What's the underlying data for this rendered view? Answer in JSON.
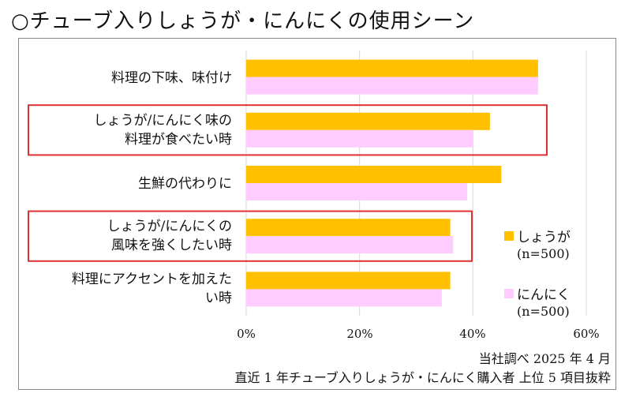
{
  "title": "○チューブ入りしょうが・にんにくの使用シーン",
  "chart_data": {
    "type": "bar",
    "orientation": "horizontal",
    "categories": [
      [
        "料理の下味、味付け"
      ],
      [
        "しょうが/にんにく味の",
        "料理が食べたい時"
      ],
      [
        "生鮮の代わりに"
      ],
      [
        "しょうが/にんにくの",
        "風味を強くしたい時"
      ],
      [
        "料理にアクセントを加えた",
        "い時"
      ]
    ],
    "series": [
      {
        "name": "しょうが",
        "sample": "(n=500)",
        "color": "#FFC000",
        "values": [
          51.5,
          43,
          45,
          36,
          36
        ]
      },
      {
        "name": "にんにく",
        "sample": "(n=500)",
        "color": "#FFCCFF",
        "values": [
          51.5,
          40,
          39,
          36.5,
          34.5
        ]
      }
    ],
    "xlim": [
      0,
      60
    ],
    "xticks": [
      "0%",
      "20%",
      "40%",
      "60%"
    ],
    "grid": true,
    "legend_position": "right",
    "highlighted_categories": [
      1,
      3
    ],
    "highlight_color": "#E03030"
  },
  "notes": {
    "source": "当社調べ  2025 年 4 月",
    "scope": "直近 1 年チューブ入りしょうが・にんにく購入者  上位 5 項目抜粋"
  }
}
